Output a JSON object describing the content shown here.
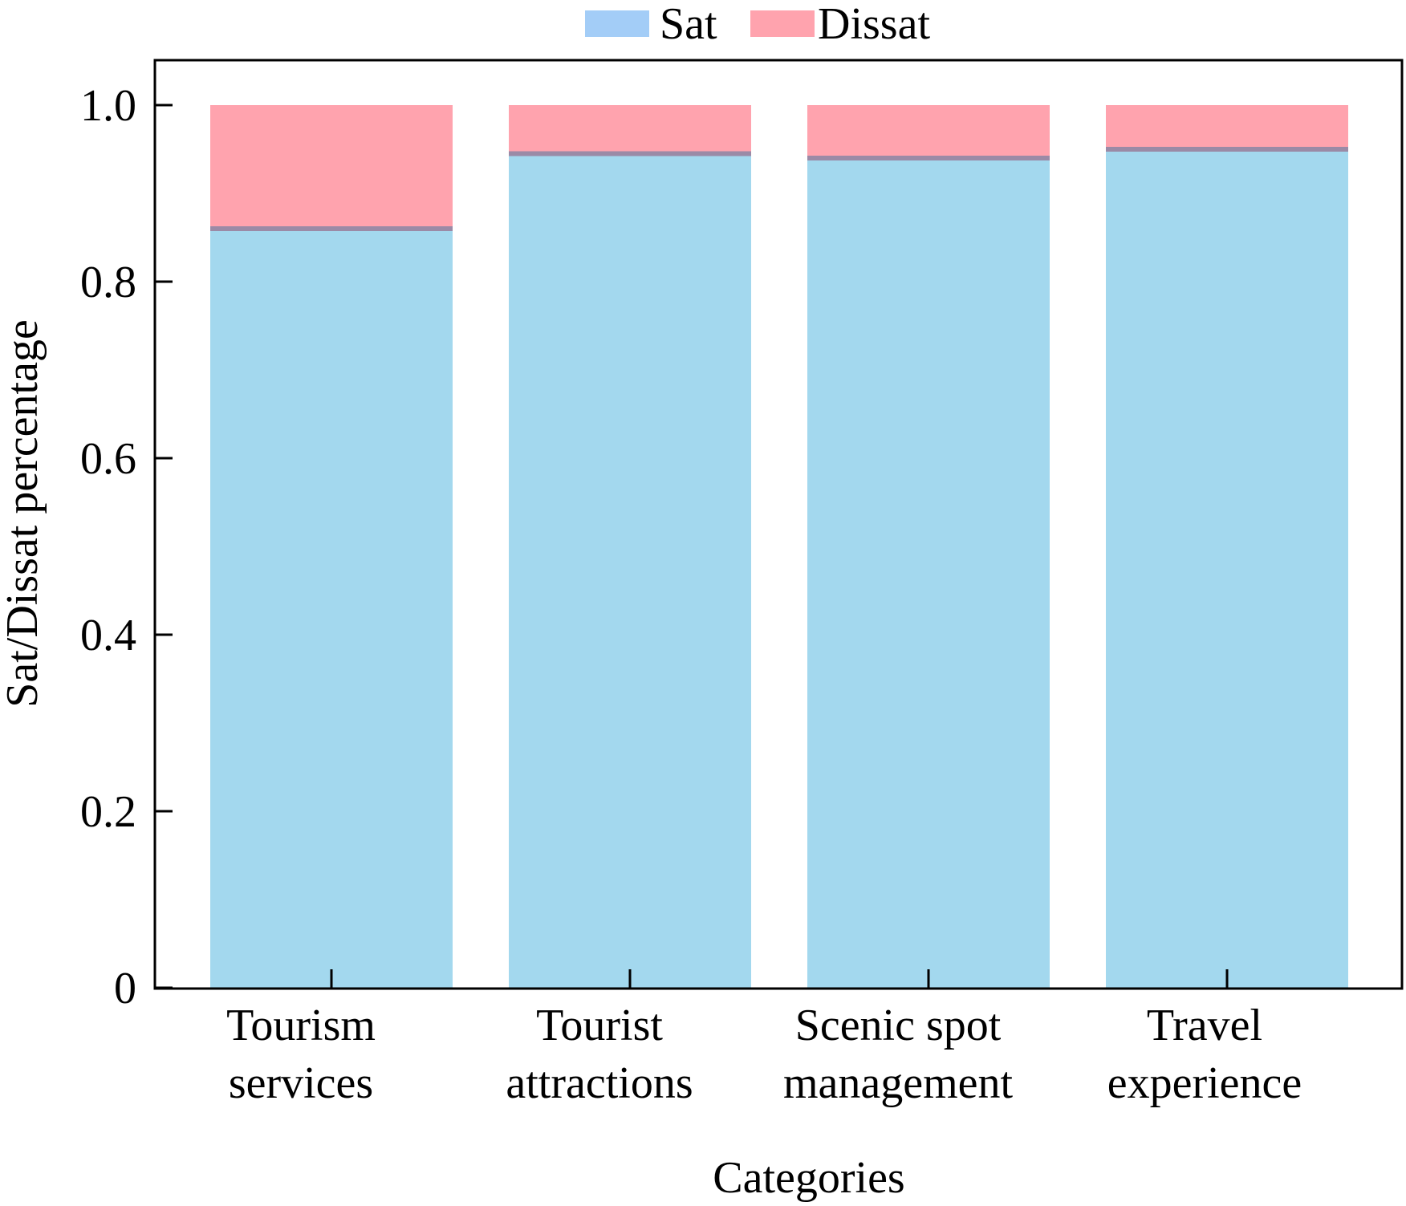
{
  "chart_data": {
    "type": "bar",
    "stacked": true,
    "categories": [
      [
        "Tourism",
        "services"
      ],
      [
        "Tourist",
        "attractions"
      ],
      [
        "Scenic spot",
        "management"
      ],
      [
        "Travel",
        "experience"
      ]
    ],
    "series": [
      {
        "name": "Sat",
        "values": [
          0.86,
          0.945,
          0.94,
          0.95
        ],
        "color": "#a3d8ee"
      },
      {
        "name": "Dissat",
        "values": [
          0.14,
          0.055,
          0.06,
          0.05
        ],
        "color": "#ffa3ae"
      }
    ],
    "legend": {
      "position": "top-center",
      "items": [
        {
          "label": "Sat",
          "color": "#a3cdf7"
        },
        {
          "label": "Dissat",
          "color": "#ffa3ae"
        }
      ]
    },
    "xlabel": "Categories",
    "ylabel": "Sat/Dissat percentage",
    "ylim": [
      0,
      1.05
    ],
    "yticks": [
      "0",
      "0.2",
      "0.4",
      "0.6",
      "0.8",
      "1.0"
    ],
    "ytick_values": [
      0,
      0.2,
      0.4,
      0.6,
      0.8,
      1.0
    ],
    "grid": false,
    "boundary_color": "#9b8aa6"
  }
}
